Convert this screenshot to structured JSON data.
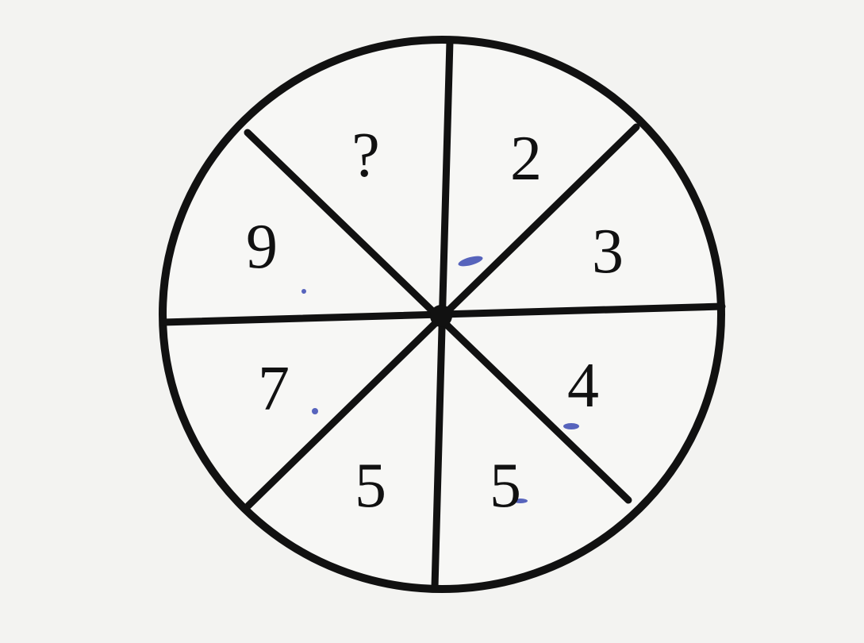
{
  "puzzle": {
    "segments": [
      {
        "value": "2"
      },
      {
        "value": "3"
      },
      {
        "value": "4"
      },
      {
        "value": "5"
      },
      {
        "value": "5"
      },
      {
        "value": "7"
      },
      {
        "value": "9"
      },
      {
        "value": "?"
      }
    ]
  },
  "colors": {
    "background": "#f3f3f1",
    "ink": "#111111",
    "pen_marks": "#2233aa"
  }
}
